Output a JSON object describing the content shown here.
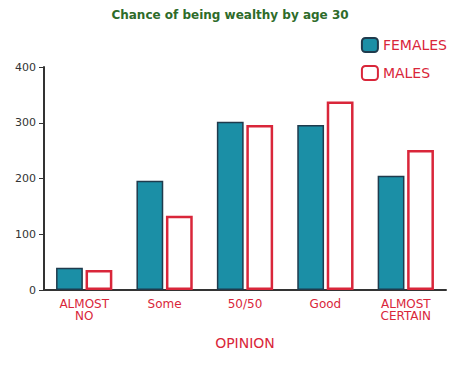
{
  "chart_data": {
    "type": "bar",
    "title": "Chance of being wealthy by age 30",
    "x_label": "OPINION",
    "categories": [
      "ALMOST NO",
      "Some",
      "50/50",
      "Good",
      "ALMOST CERTAIN"
    ],
    "series": [
      {
        "name": "FEMALES",
        "color": "#1b8fa6",
        "values": [
          40,
          196,
          302,
          296,
          205
        ]
      },
      {
        "name": "MALES",
        "color": "#d9263a",
        "values": [
          36,
          133,
          296,
          338,
          251
        ]
      }
    ],
    "ylim": [
      0,
      400
    ],
    "yticks": [
      0,
      100,
      200,
      300,
      400
    ],
    "grid": false,
    "legend": "top-right"
  }
}
